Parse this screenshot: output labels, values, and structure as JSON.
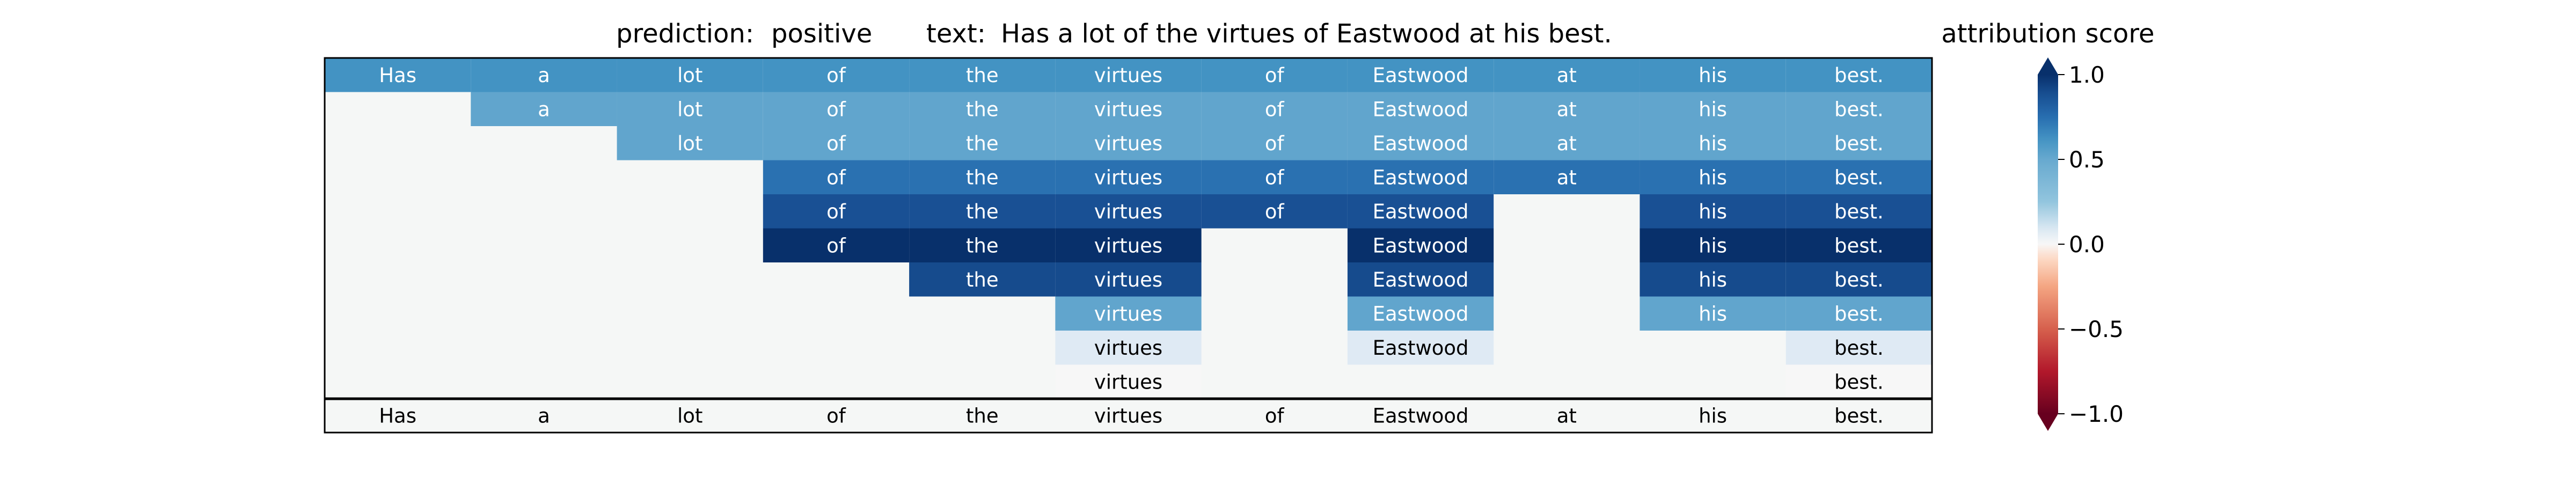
{
  "chart_data": {
    "type": "heatmap",
    "title": {
      "prediction_label": "prediction:",
      "prediction_value": "positive",
      "text_label": "text:",
      "text_value": "Has a lot of the virtues of Eastwood at his best."
    },
    "tokens": [
      "Has",
      "a",
      "lot",
      "of",
      "the",
      "virtues",
      "of",
      "Eastwood",
      "at",
      "his",
      "best."
    ],
    "rows": [
      {
        "tokens": [
          0,
          1,
          2,
          3,
          4,
          5,
          6,
          7,
          8,
          9,
          10
        ],
        "score": 0.62
      },
      {
        "tokens": [
          1,
          2,
          3,
          4,
          5,
          6,
          7,
          8,
          9,
          10
        ],
        "score": 0.52
      },
      {
        "tokens": [
          2,
          3,
          4,
          5,
          6,
          7,
          8,
          9,
          10
        ],
        "score": 0.52
      },
      {
        "tokens": [
          3,
          4,
          5,
          6,
          7,
          8,
          9,
          10
        ],
        "score": 0.74
      },
      {
        "tokens": [
          3,
          4,
          5,
          6,
          7,
          9,
          10
        ],
        "score": 0.88
      },
      {
        "tokens": [
          3,
          4,
          5,
          7,
          9,
          10
        ],
        "score": 1.0
      },
      {
        "tokens": [
          4,
          5,
          7,
          9,
          10
        ],
        "score": 0.9
      },
      {
        "tokens": [
          5,
          7,
          9,
          10
        ],
        "score": 0.52
      },
      {
        "tokens": [
          5,
          7,
          10
        ],
        "score": 0.08
      },
      {
        "tokens": [
          5,
          10
        ],
        "score": 0.0
      }
    ],
    "colorbar": {
      "label": "attribution score",
      "min": -1.0,
      "max": 1.0,
      "ticks": [
        1.0,
        0.5,
        0.0,
        -0.5,
        -1.0
      ],
      "tick_labels": [
        "1.0",
        "0.5",
        "0.0",
        "−0.5",
        "−1.0"
      ],
      "colormap": "RdBu",
      "extend": "both"
    },
    "colors": {
      "empty_cell": "#f5f7f6",
      "grid": "#000000",
      "text_light": "#ffffff",
      "text_dark": "#000000"
    }
  }
}
